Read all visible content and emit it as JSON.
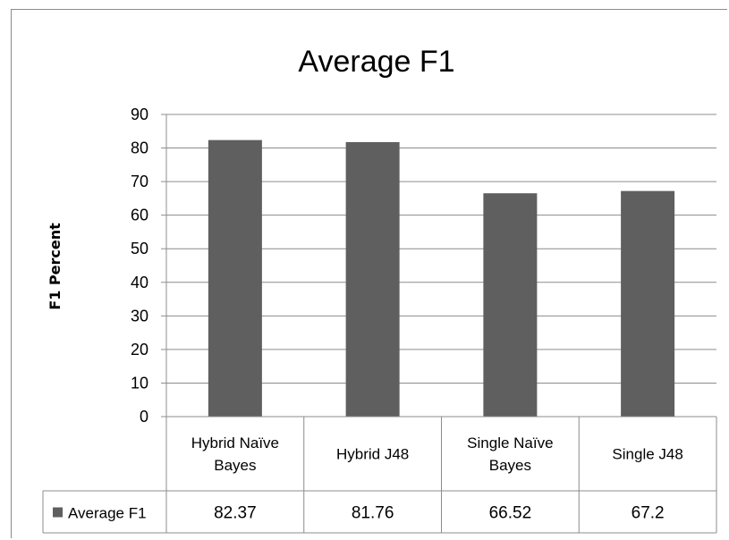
{
  "chart_data": {
    "type": "bar",
    "title": "Average F1",
    "ylabel": "F1 Percent",
    "xlabel": "",
    "ylim": [
      0,
      90
    ],
    "yticks": [
      0,
      10,
      20,
      30,
      40,
      50,
      60,
      70,
      80,
      90
    ],
    "categories": [
      [
        "Hybrid Naïve",
        "Bayes"
      ],
      [
        "Hybrid J48"
      ],
      [
        "Single Naïve",
        "Bayes"
      ],
      [
        "Single J48"
      ]
    ],
    "series": [
      {
        "name": "Average F1",
        "values": [
          82.37,
          81.76,
          66.52,
          67.2
        ],
        "labels": [
          "82.37",
          "81.76",
          "66.52",
          "67.2"
        ],
        "color": "#5f5f5f"
      }
    ],
    "grid": true,
    "legend": "data-table-left",
    "colors": {
      "grid": "#8c8c8c",
      "table_border": "#8c8c8c",
      "bar": "#5f5f5f"
    }
  }
}
